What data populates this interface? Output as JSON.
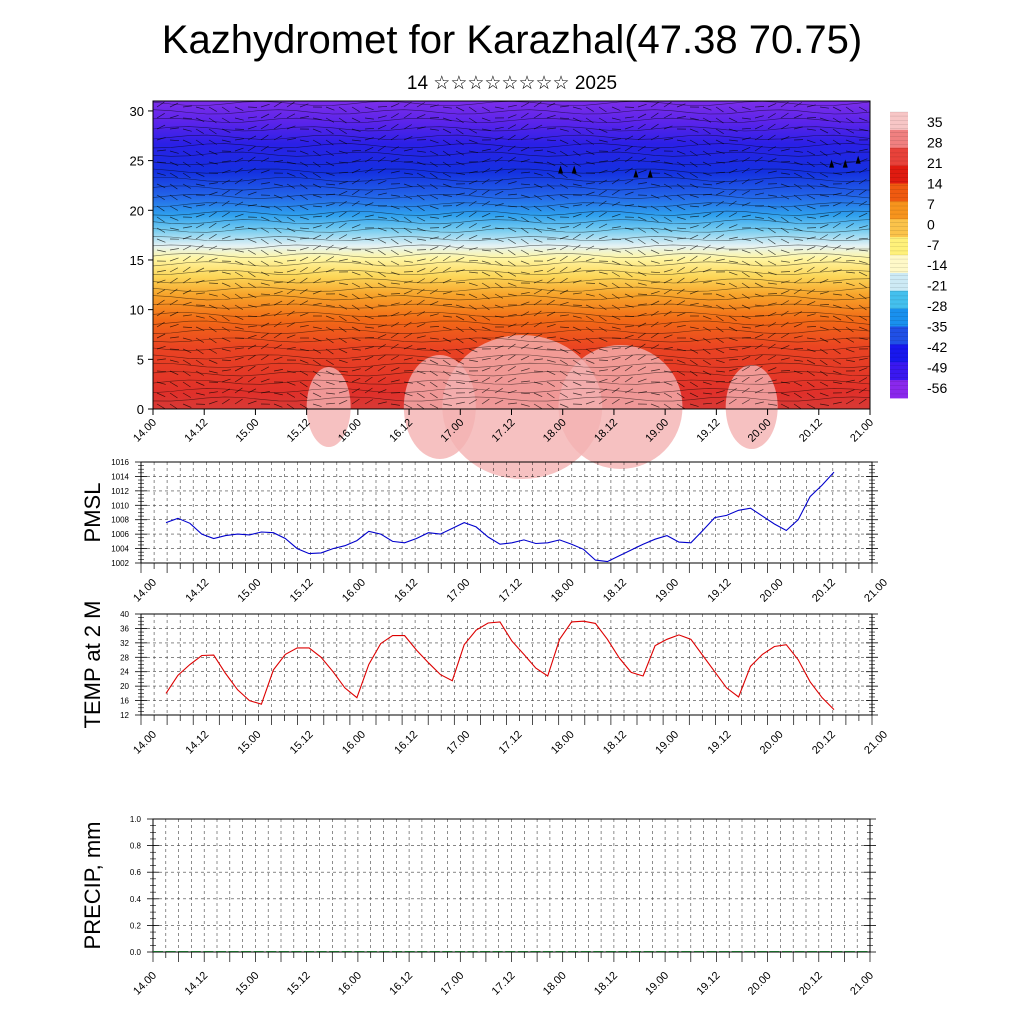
{
  "header": {
    "title": "Kazhydromet for Karazhal(47.38 70.75)",
    "subtitle": "14 ☆☆☆☆☆☆☆☆ 2025"
  },
  "chart_data": [
    {
      "type": "heatmap",
      "ylabel": "",
      "ylim": [
        0,
        31
      ],
      "yticks": [
        0,
        5,
        10,
        15,
        20,
        25,
        30
      ],
      "xticks": [
        "14.00",
        "14.12",
        "15.00",
        "15.12",
        "16.00",
        "16.12",
        "17.00",
        "17.12",
        "18.00",
        "18.12",
        "19.00",
        "19.12",
        "20.00",
        "20.12",
        "21.00"
      ],
      "colorbar": {
        "labels": [
          "35",
          "28",
          "21",
          "14",
          "7",
          "0",
          "-7",
          "-14",
          "-21",
          "-28",
          "-35",
          "-42",
          "-49",
          "-56"
        ],
        "colors": [
          "#f7c6c6",
          "#f08080",
          "#e8423a",
          "#e01b10",
          "#ef5a10",
          "#f7941d",
          "#fbc34a",
          "#fff17a",
          "#fff9c8",
          "#cdeaf5",
          "#44c0ee",
          "#1990ee",
          "#2050e6",
          "#1818ee",
          "#3a18f0",
          "#8a28ec"
        ]
      },
      "overlay": "wind barbs"
    },
    {
      "type": "line",
      "ylabel": "PMSL",
      "ylim": [
        1002,
        1016
      ],
      "yticks": [
        1002,
        1004,
        1006,
        1008,
        1010,
        1012,
        1014,
        1016
      ],
      "xticks": [
        "14.00",
        "14.12",
        "15.00",
        "15.12",
        "16.00",
        "16.12",
        "17.00",
        "17.12",
        "18.00",
        "18.12",
        "19.00",
        "19.12",
        "20.00",
        "20.12",
        "21.00"
      ],
      "series": [
        {
          "color": "#0000cc",
          "values": [
            1007.6,
            1008.2,
            1007.5,
            1006.0,
            1005.4,
            1005.8,
            1006.0,
            1005.9,
            1006.3,
            1006.2,
            1005.4,
            1004.0,
            1003.3,
            1003.4,
            1004.0,
            1004.4,
            1005.1,
            1006.4,
            1006.0,
            1005.0,
            1004.8,
            1005.4,
            1006.2,
            1006.0,
            1006.8,
            1007.6,
            1007.0,
            1005.6,
            1004.6,
            1004.8,
            1005.2,
            1004.7,
            1004.8,
            1005.2,
            1004.6,
            1003.9,
            1002.4,
            1002.2,
            1003.0,
            1003.8,
            1004.6,
            1005.3,
            1005.8,
            1004.9,
            1004.8,
            1006.5,
            1008.3,
            1008.6,
            1009.3,
            1009.6,
            1008.5,
            1007.4,
            1006.5,
            1008.0,
            1011.2,
            1012.8,
            1014.6
          ]
        }
      ]
    },
    {
      "type": "line",
      "ylabel": "TEMP at 2 M",
      "ylim": [
        12,
        40
      ],
      "yticks": [
        12,
        16,
        20,
        24,
        28,
        32,
        36,
        40
      ],
      "xticks": [
        "14.00",
        "14.12",
        "15.00",
        "15.12",
        "16.00",
        "16.12",
        "17.00",
        "17.12",
        "18.00",
        "18.12",
        "19.00",
        "19.12",
        "20.00",
        "20.12",
        "21.00"
      ],
      "series": [
        {
          "color": "#dd0000",
          "values": [
            18,
            23,
            26,
            28.5,
            28.6,
            23.5,
            19,
            16,
            15,
            24.5,
            28.8,
            30.6,
            30.6,
            28,
            24,
            19.5,
            16.8,
            26,
            31.8,
            34,
            34,
            30,
            26.5,
            23.2,
            21.5,
            31.5,
            35.5,
            37.5,
            37.8,
            32.5,
            28.8,
            25,
            22.8,
            33,
            37.8,
            38,
            37.4,
            33,
            27.8,
            23.8,
            22.8,
            31.2,
            33,
            34.2,
            33,
            28.5,
            24,
            19.5,
            17,
            25.5,
            28.8,
            31,
            31.5,
            27.3,
            21.2,
            16.8,
            13.5
          ]
        }
      ]
    },
    {
      "type": "bar",
      "ylabel": "PRECIP, mm",
      "ylim": [
        0,
        1
      ],
      "yticks": [
        "0.0",
        "0.2",
        "0.4",
        "0.6",
        "0.8",
        "1.0"
      ],
      "xticks": [
        "14.00",
        "14.12",
        "15.00",
        "15.12",
        "16.00",
        "16.12",
        "17.00",
        "17.12",
        "18.00",
        "18.12",
        "19.00",
        "19.12",
        "20.00",
        "20.12",
        "21.00"
      ],
      "values": [
        0,
        0,
        0,
        0,
        0,
        0,
        0,
        0,
        0,
        0,
        0,
        0,
        0,
        0,
        0,
        0,
        0,
        0,
        0,
        0,
        0,
        0,
        0,
        0,
        0,
        0,
        0,
        0,
        0,
        0,
        0,
        0,
        0,
        0,
        0,
        0,
        0,
        0,
        0,
        0,
        0,
        0,
        0,
        0,
        0,
        0,
        0,
        0,
        0,
        0,
        0,
        0,
        0,
        0,
        0,
        0,
        0
      ]
    }
  ]
}
